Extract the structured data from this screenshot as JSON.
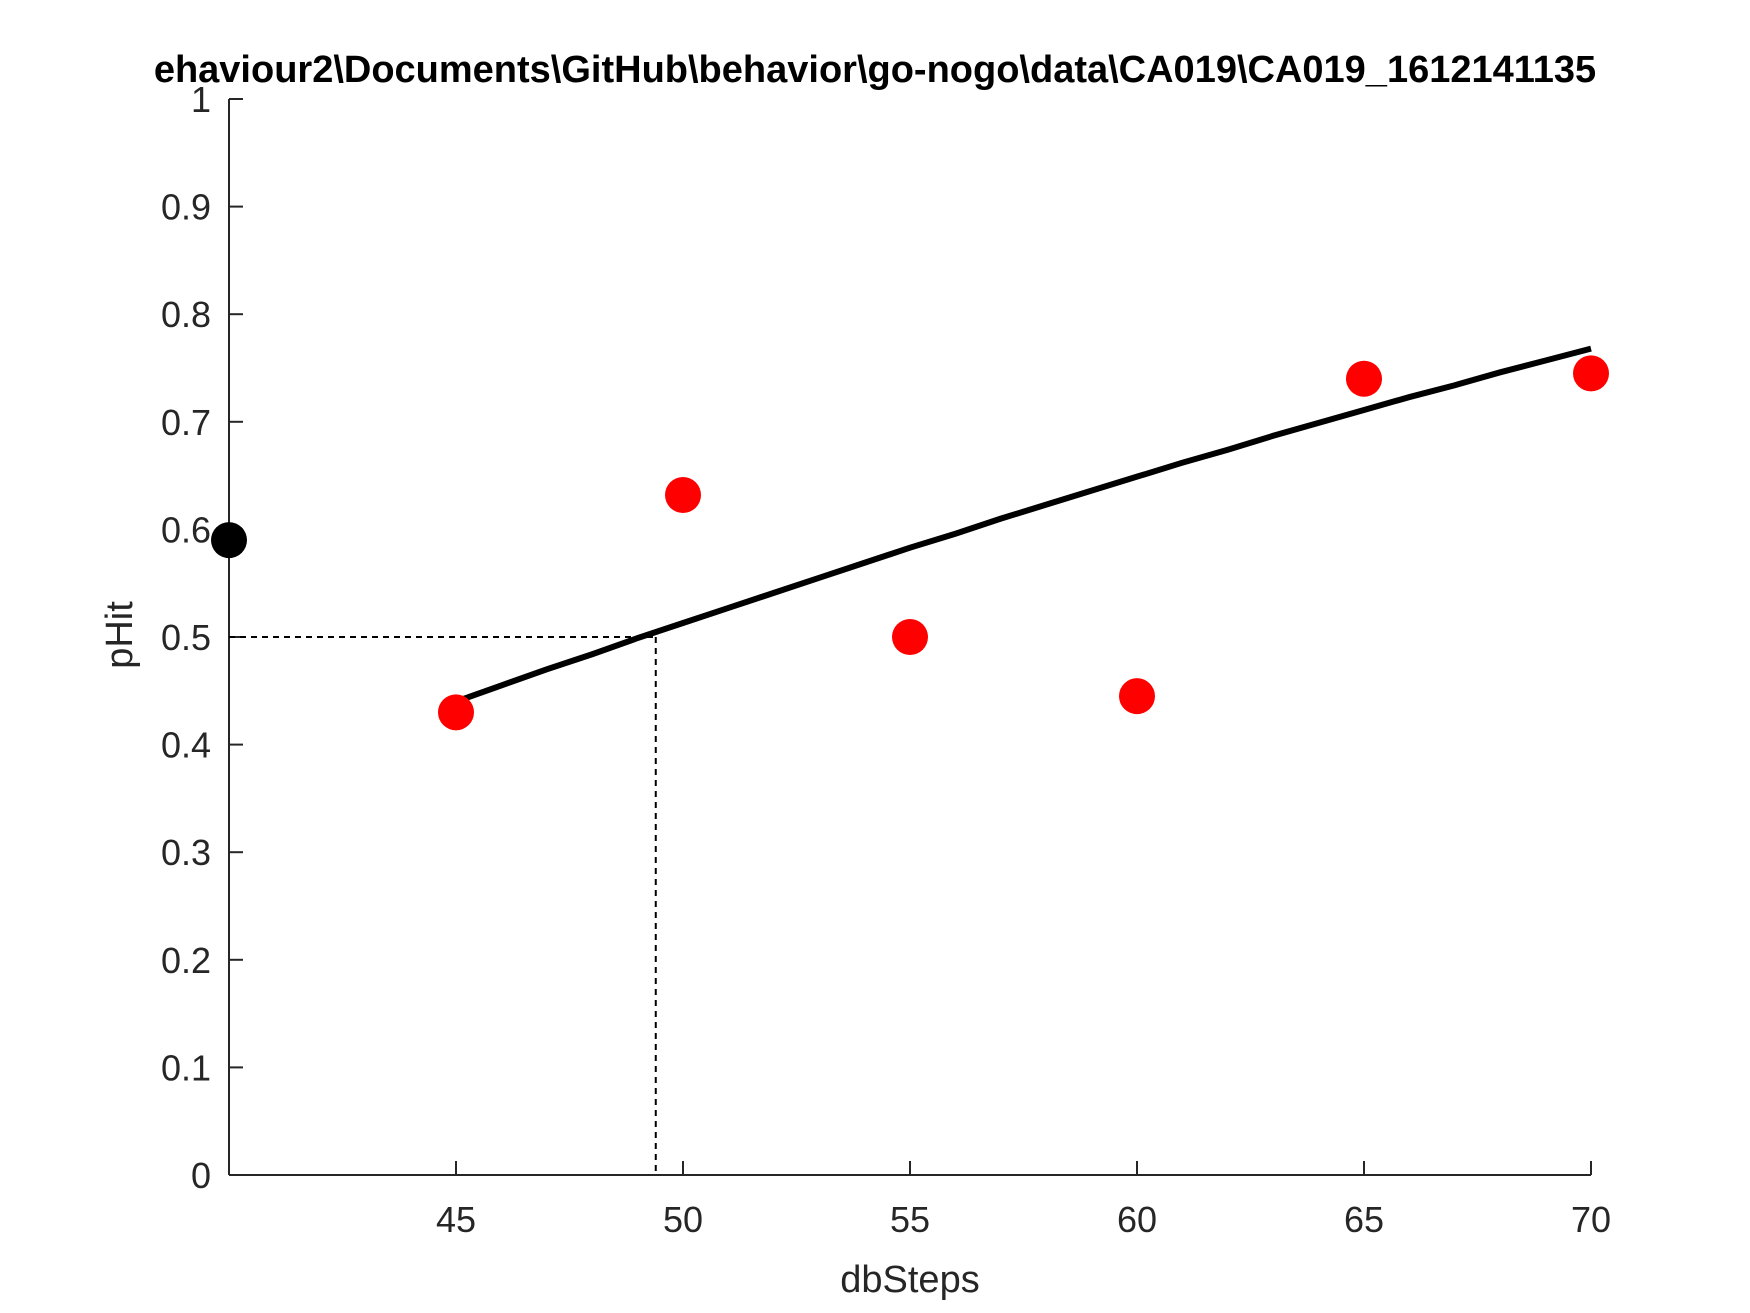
{
  "chart_data": {
    "type": "scatter",
    "title": "ehaviour2\\Documents\\GitHub\\behavior\\go-nogo\\data\\CA019\\CA019_1612141135",
    "xlabel": "dbSteps",
    "ylabel": "pHit",
    "xlim": [
      40,
      70
    ],
    "ylim": [
      0,
      1
    ],
    "xticks": [
      45,
      50,
      55,
      60,
      65,
      70
    ],
    "yticks": [
      0,
      0.1,
      0.2,
      0.3,
      0.4,
      0.5,
      0.6,
      0.7,
      0.8,
      0.9,
      1
    ],
    "ytick_labels": [
      "0",
      "0.1",
      "0.2",
      "0.3",
      "0.4",
      "0.5",
      "0.6",
      "0.7",
      "0.8",
      "0.9",
      "1"
    ],
    "grid": false,
    "series": [
      {
        "kind": "scatter",
        "color": "#ff0000",
        "x": [
          45,
          50,
          55,
          60,
          65,
          70
        ],
        "y": [
          0.43,
          0.632,
          0.5,
          0.445,
          0.74,
          0.745
        ]
      },
      {
        "kind": "scatter",
        "color": "#000000",
        "x": [
          40
        ],
        "y": [
          0.59
        ]
      },
      {
        "kind": "line",
        "color": "#000000",
        "x": [
          45,
          46,
          47,
          48,
          49,
          50,
          51,
          52,
          53,
          54,
          55,
          56,
          57,
          58,
          59,
          60,
          61,
          62,
          63,
          64,
          65,
          66,
          67,
          68,
          69,
          70
        ],
        "y": [
          0.44,
          0.455,
          0.47,
          0.484,
          0.499,
          0.513,
          0.527,
          0.541,
          0.555,
          0.569,
          0.583,
          0.596,
          0.61,
          0.623,
          0.636,
          0.649,
          0.662,
          0.674,
          0.687,
          0.699,
          0.711,
          0.723,
          0.734,
          0.746,
          0.757,
          0.768
        ]
      }
    ],
    "threshold": {
      "x": 49.4,
      "y": 0.5,
      "style": "dashed"
    }
  }
}
